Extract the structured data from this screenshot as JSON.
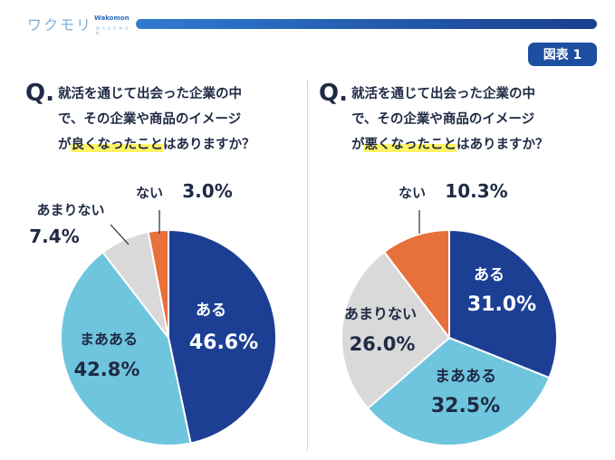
{
  "logo": {
    "jp": "ワクモリ",
    "en": "Wakomon",
    "sub": "W A K O M O N"
  },
  "figure_label": "図表 1",
  "left": {
    "q_mark": "Q.",
    "q_line1": "就活を通じて出会った企業の中",
    "q_line2": "で、その企業や商品のイメージ",
    "q_line3_pre": "が",
    "q_line3_hl": "良くなったこと",
    "q_line3_post": "はありますか？"
  },
  "right": {
    "q_mark": "Q.",
    "q_line1": "就活を通じて出会った企業の中",
    "q_line2": "で、その企業や商品のイメージ",
    "q_line3_pre": "が",
    "q_line3_hl": "悪くなったこと",
    "q_line3_post": "はありますか？"
  },
  "chart_data": [
    {
      "type": "pie",
      "title": "良くなったこと",
      "categories": [
        "ある",
        "まあある",
        "あまりない",
        "ない"
      ],
      "values": [
        46.6,
        42.8,
        7.4,
        3.0
      ],
      "value_labels": [
        "46.6%",
        "42.8%",
        "7.4%",
        "3.0%"
      ],
      "colors": [
        "#1c3f94",
        "#6ec5dd",
        "#d9d9d9",
        "#e8703a"
      ]
    },
    {
      "type": "pie",
      "title": "悪くなったこと",
      "categories": [
        "ある",
        "まあある",
        "あまりない",
        "ない"
      ],
      "values": [
        31.0,
        32.5,
        26.0,
        10.3
      ],
      "value_labels": [
        "31.0%",
        "32.5%",
        "26.0%",
        "10.3%"
      ],
      "colors": [
        "#1c3f94",
        "#6ec5dd",
        "#d9d9d9",
        "#e8703a"
      ]
    }
  ]
}
